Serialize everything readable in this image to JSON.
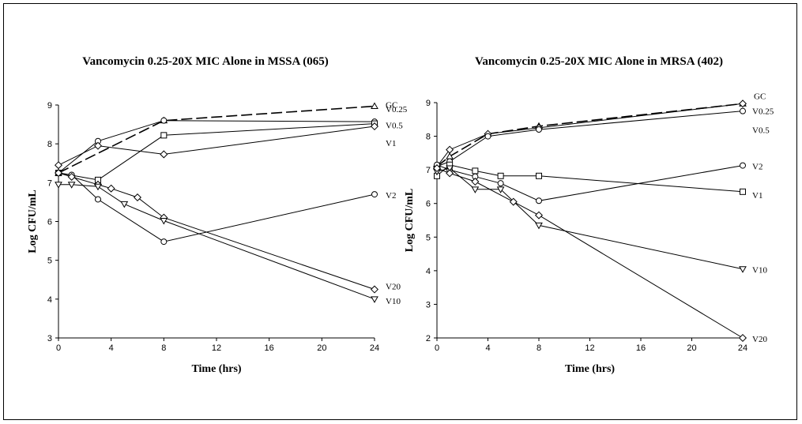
{
  "chart_data": [
    {
      "type": "line",
      "title": "Vancomycin 0.25-20X MIC Alone in MSSA (065)",
      "xlabel": "Time (hrs)",
      "ylabel": "Log CFU/mL",
      "xlim": [
        0,
        24
      ],
      "ylim": [
        3,
        9
      ],
      "xticks": [
        0,
        4,
        8,
        12,
        16,
        20,
        24
      ],
      "yticks": [
        3,
        4,
        5,
        6,
        7,
        8,
        9
      ],
      "grid": false,
      "legend": "direct labels at right end of lines",
      "series": [
        {
          "name": "GC",
          "marker": "triangle",
          "dashed": true,
          "x": [
            0,
            8,
            24
          ],
          "y": [
            7.25,
            8.6,
            8.97
          ]
        },
        {
          "name": "V0.25",
          "marker": "circle",
          "dashed": false,
          "x": [
            0,
            3,
            8,
            24
          ],
          "y": [
            7.25,
            8.07,
            8.6,
            8.57
          ]
        },
        {
          "name": "V0.5",
          "marker": "square",
          "dashed": false,
          "x": [
            0,
            3,
            8,
            24
          ],
          "y": [
            7.25,
            7.07,
            8.22,
            8.52
          ]
        },
        {
          "name": "V1",
          "marker": "diamond",
          "dashed": false,
          "x": [
            0,
            3,
            8,
            24
          ],
          "y": [
            7.45,
            7.95,
            7.73,
            8.45
          ]
        },
        {
          "name": "V2",
          "marker": "circle",
          "dashed": false,
          "x": [
            0,
            1,
            3,
            8,
            24
          ],
          "y": [
            7.25,
            7.2,
            6.57,
            5.48,
            6.7
          ]
        },
        {
          "name": "V20",
          "marker": "diamond",
          "dashed": false,
          "x": [
            0,
            1,
            3,
            4,
            6,
            8,
            24
          ],
          "y": [
            7.25,
            7.15,
            6.95,
            6.85,
            6.62,
            6.1,
            4.25
          ]
        },
        {
          "name": "V10",
          "marker": "triangle-down",
          "dashed": false,
          "x": [
            0,
            1,
            3,
            5,
            8,
            24
          ],
          "y": [
            6.95,
            6.95,
            6.9,
            6.45,
            6.02,
            4.0
          ]
        }
      ]
    },
    {
      "type": "line",
      "title": "Vancomycin 0.25-20X MIC Alone in MRSA (402)",
      "xlabel": "Time (hrs)",
      "ylabel": "Log CFU/mL",
      "xlim": [
        0,
        24
      ],
      "ylim": [
        2,
        9
      ],
      "xticks": [
        0,
        4,
        8,
        12,
        16,
        20,
        24
      ],
      "yticks": [
        2,
        3,
        4,
        5,
        6,
        7,
        8,
        9
      ],
      "grid": false,
      "legend": "direct labels at right end of lines",
      "series": [
        {
          "name": "GC",
          "marker": "triangle",
          "dashed": true,
          "x": [
            0,
            1,
            4,
            8,
            24
          ],
          "y": [
            7.1,
            7.4,
            8.07,
            8.3,
            8.97
          ]
        },
        {
          "name": "V0.25",
          "marker": "diamond",
          "dashed": false,
          "x": [
            0,
            1,
            4,
            8,
            24
          ],
          "y": [
            7.1,
            7.6,
            8.07,
            8.25,
            8.97
          ]
        },
        {
          "name": "V0.5",
          "marker": "circle",
          "dashed": false,
          "x": [
            0,
            1,
            4,
            8,
            24
          ],
          "y": [
            7.1,
            7.25,
            8.0,
            8.2,
            8.75
          ]
        },
        {
          "name": "V1",
          "marker": "square",
          "dashed": false,
          "x": [
            0,
            1,
            3,
            5,
            8,
            24
          ],
          "y": [
            6.82,
            7.15,
            6.97,
            6.82,
            6.82,
            6.35
          ]
        },
        {
          "name": "V2",
          "marker": "circle",
          "dashed": false,
          "x": [
            0,
            1,
            3,
            5,
            8,
            24
          ],
          "y": [
            7.15,
            7.0,
            6.8,
            6.6,
            6.08,
            7.13
          ]
        },
        {
          "name": "V10",
          "marker": "triangle-down",
          "dashed": false,
          "x": [
            0,
            1,
            3,
            5,
            8,
            24
          ],
          "y": [
            6.95,
            7.05,
            6.42,
            6.42,
            5.35,
            4.05
          ]
        },
        {
          "name": "V20",
          "marker": "diamond",
          "dashed": false,
          "x": [
            0,
            1,
            3,
            6,
            8,
            24
          ],
          "y": [
            7.05,
            6.9,
            6.65,
            6.05,
            5.65,
            2.0
          ]
        }
      ]
    }
  ]
}
